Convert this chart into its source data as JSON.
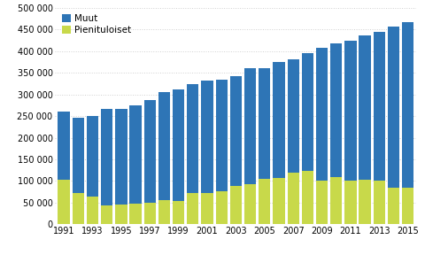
{
  "years": [
    1991,
    1992,
    1993,
    1994,
    1995,
    1996,
    1997,
    1998,
    1999,
    2000,
    2001,
    2002,
    2003,
    2004,
    2005,
    2006,
    2007,
    2008,
    2009,
    2010,
    2011,
    2012,
    2013,
    2014,
    2015
  ],
  "pienituloiset": [
    103000,
    73000,
    65000,
    43000,
    45000,
    47000,
    50000,
    57000,
    55000,
    73000,
    73000,
    77000,
    88000,
    93000,
    105000,
    107000,
    120000,
    123000,
    100000,
    110000,
    100000,
    103000,
    100000,
    84000,
    84000
  ],
  "muut": [
    157000,
    172000,
    185000,
    223000,
    222000,
    228000,
    237000,
    248000,
    257000,
    250000,
    258000,
    257000,
    253000,
    268000,
    255000,
    268000,
    261000,
    272000,
    307000,
    308000,
    323000,
    333000,
    345000,
    372000,
    382000
  ],
  "color_muut": "#2E75B6",
  "color_pienituloiset": "#C8D94A",
  "legend_muut": "Muut",
  "legend_pienituloiset": "Pienituloiset",
  "ylim": [
    0,
    500000
  ],
  "yticks": [
    0,
    50000,
    100000,
    150000,
    200000,
    250000,
    300000,
    350000,
    400000,
    450000,
    500000
  ],
  "background_color": "#ffffff",
  "grid_color": "#d0d0d0"
}
